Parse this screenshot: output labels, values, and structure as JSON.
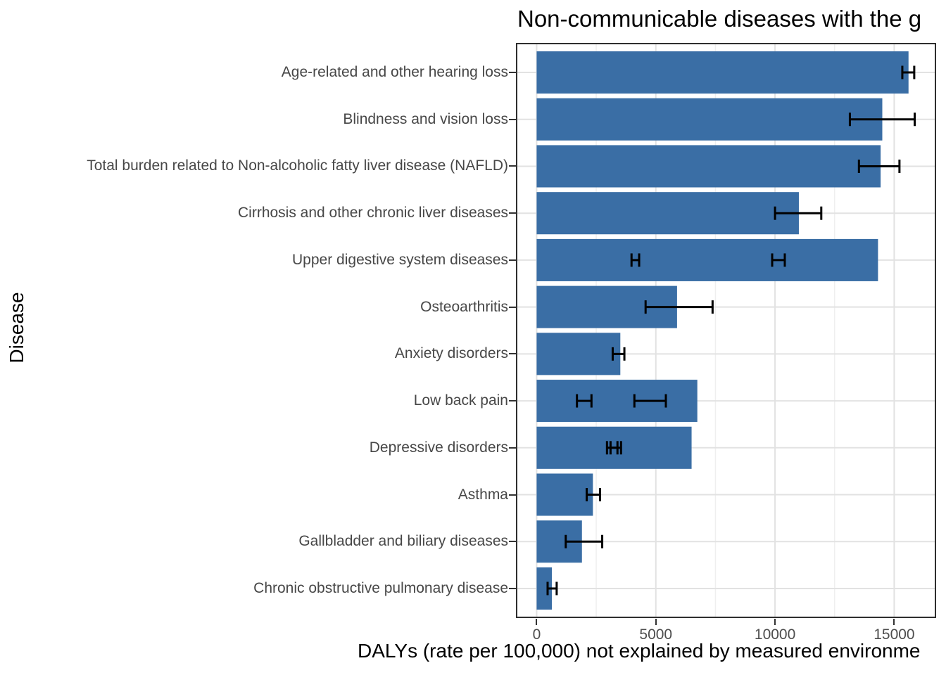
{
  "chart_data": {
    "type": "bar",
    "orientation": "horizontal",
    "title": "Non-communicable diseases with the g",
    "xlabel": "DALYs (rate per 100,000) not explained by measured environme",
    "ylabel": "Disease",
    "x_tick_labels": [
      "0",
      "5000",
      "10000",
      "15000"
    ],
    "x_ticks": [
      0,
      5000,
      10000,
      15000
    ],
    "x_minor_ticks": [
      2500,
      7500,
      12500
    ],
    "xlim": [
      -810,
      16700
    ],
    "grid": {
      "major": true,
      "minor": true,
      "horizontal_major": true
    },
    "legend": "none",
    "bar_color": "#3A6EA5",
    "error_bar_color": "#000000",
    "categories": [
      "Age-related and other hearing loss",
      "Blindness and vision loss",
      "Total burden related to Non-alcoholic fatty liver disease (NAFLD)",
      "Cirrhosis and other chronic liver diseases",
      "Upper digestive system diseases",
      "Osteoarthritis",
      "Anxiety disorders",
      "Low back pain",
      "Depressive disorders",
      "Asthma",
      "Gallbladder and biliary diseases",
      "Chronic obstructive pulmonary disease"
    ],
    "values": [
      15600,
      14500,
      14430,
      11000,
      14320,
      5890,
      3510,
      6740,
      6500,
      2360,
      1900,
      640
    ],
    "error_bars": [
      [
        [
          15340,
          15840
        ]
      ],
      [
        [
          13140,
          15860
        ]
      ],
      [
        [
          13520,
          15220
        ]
      ],
      [
        [
          10000,
          11940
        ]
      ],
      [
        [
          3980,
          4300
        ],
        [
          9880,
          10410
        ]
      ],
      [
        [
          4570,
          7380
        ]
      ],
      [
        [
          3190,
          3680
        ]
      ],
      [
        [
          1690,
          2300
        ],
        [
          4100,
          5420
        ]
      ],
      [
        [
          2950,
          3390
        ],
        [
          3100,
          3540
        ]
      ],
      [
        [
          2100,
          2660
        ]
      ],
      [
        [
          1220,
          2750
        ]
      ],
      [
        [
          460,
          840
        ]
      ]
    ]
  },
  "style": {
    "grid_major_color": "#e2e2e2",
    "grid_minor_color": "#efefef",
    "panel_border_color": "#2e2e2e",
    "tick_color": "#333333",
    "tick_label_color": "#4d4d4d",
    "category_label_color": "#474747"
  }
}
